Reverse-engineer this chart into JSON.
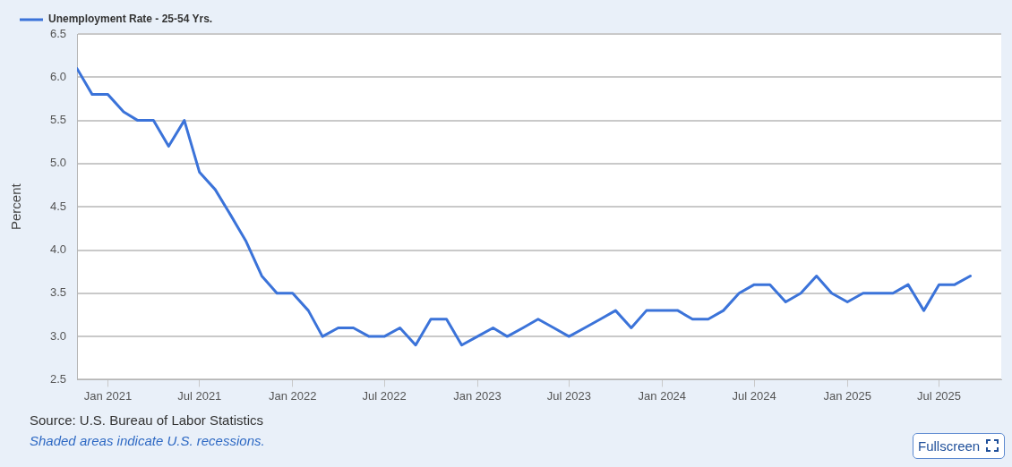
{
  "chart_data": {
    "type": "line",
    "ylabel": "Percent",
    "x": [
      "2020-11",
      "2020-12",
      "2021-01",
      "2021-02",
      "2021-03",
      "2021-04",
      "2021-05",
      "2021-06",
      "2021-07",
      "2021-08",
      "2021-09",
      "2021-10",
      "2021-11",
      "2021-12",
      "2022-01",
      "2022-02",
      "2022-03",
      "2022-04",
      "2022-05",
      "2022-06",
      "2022-07",
      "2022-08",
      "2022-09",
      "2022-10",
      "2022-11",
      "2022-12",
      "2023-01",
      "2023-02",
      "2023-03",
      "2023-04",
      "2023-05",
      "2023-06",
      "2023-07",
      "2023-08",
      "2023-09",
      "2023-10",
      "2023-11",
      "2023-12",
      "2024-01",
      "2024-02",
      "2024-03",
      "2024-04",
      "2024-05",
      "2024-06",
      "2024-07",
      "2024-08",
      "2024-09",
      "2024-10",
      "2024-11",
      "2024-12",
      "2025-01",
      "2025-02",
      "2025-03",
      "2025-04",
      "2025-05",
      "2025-06",
      "2025-07",
      "2025-08",
      "2025-09"
    ],
    "series": [
      {
        "name": "Unemployment Rate - 25-54 Yrs.",
        "color": "#3b73d9",
        "values": [
          6.1,
          5.8,
          5.8,
          5.6,
          5.5,
          5.5,
          5.2,
          5.5,
          4.9,
          4.7,
          4.4,
          4.1,
          3.7,
          3.5,
          3.5,
          3.3,
          3.0,
          3.1,
          3.1,
          3.0,
          3.0,
          3.1,
          2.9,
          3.2,
          3.2,
          2.9,
          3.0,
          3.1,
          3.0,
          3.1,
          3.2,
          3.1,
          3.0,
          3.1,
          3.2,
          3.3,
          3.1,
          3.3,
          3.3,
          3.3,
          3.2,
          3.2,
          3.3,
          3.5,
          3.6,
          3.6,
          3.4,
          3.5,
          3.7,
          3.5,
          3.4,
          3.5,
          3.5,
          3.5,
          3.6,
          3.3,
          3.6,
          3.6,
          3.7
        ]
      }
    ],
    "xlim": [
      "2020-11",
      "2025-11"
    ],
    "xticks": [
      {
        "value": "2021-01",
        "label": "Jan 2021"
      },
      {
        "value": "2021-07",
        "label": "Jul 2021"
      },
      {
        "value": "2022-01",
        "label": "Jan 2022"
      },
      {
        "value": "2022-07",
        "label": "Jul 2022"
      },
      {
        "value": "2023-01",
        "label": "Jan 2023"
      },
      {
        "value": "2023-07",
        "label": "Jul 2023"
      },
      {
        "value": "2024-01",
        "label": "Jan 2024"
      },
      {
        "value": "2024-07",
        "label": "Jul 2024"
      },
      {
        "value": "2025-01",
        "label": "Jan 2025"
      },
      {
        "value": "2025-07",
        "label": "Jul 2025"
      }
    ],
    "ylim": [
      2.5,
      6.5
    ],
    "yticks": [
      2.5,
      {
        "value": 3,
        "label": "3.0"
      },
      3.5,
      {
        "value": 4,
        "label": "4.0"
      },
      4.5,
      {
        "value": 5,
        "label": "5.0"
      },
      5.5,
      {
        "value": 6,
        "label": "6.0"
      },
      6.5
    ],
    "grid": "y",
    "legend": "top left",
    "marker": "none",
    "annotations": [
      "Source: U.S. Bureau of Labor Statistics",
      "Shaded areas indicate U.S. recessions.",
      "Fullscreen"
    ]
  }
}
